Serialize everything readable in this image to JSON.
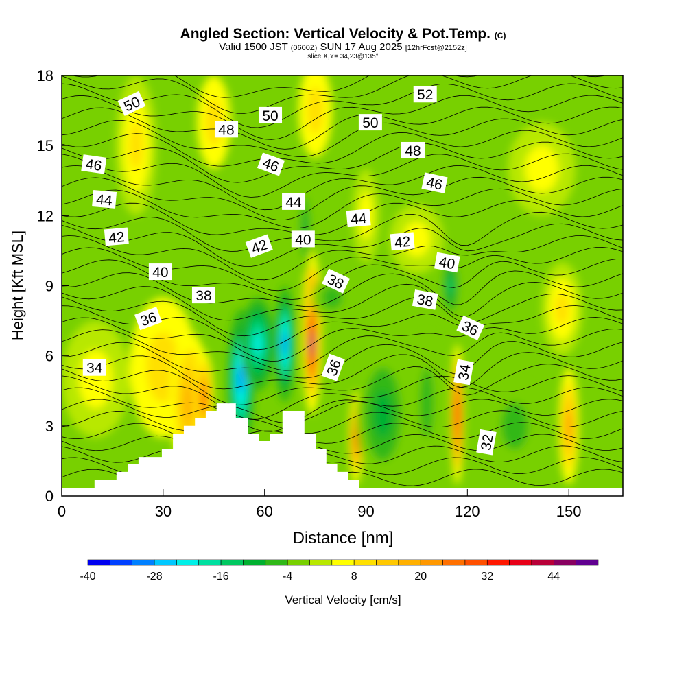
{
  "chart_data": {
    "type": "heatmap",
    "title": "Angled Section: Vertical Velocity & Pot.Temp.",
    "title_mark": "(C)",
    "subtitle_main": "Valid 1500 JST",
    "subtitle_z": "(0600Z)",
    "subtitle_date": "SUN 17 Aug 2025",
    "subtitle_fcst": "[12hrFcst@2152z]",
    "slice": "slice X,Y= 34,23@135°",
    "xlabel": "Distance [nm]",
    "ylabel": "Height [Kft MSL]",
    "xlim": [
      0,
      166
    ],
    "ylim": [
      0,
      18
    ],
    "xticks": [
      "0",
      "30",
      "60",
      "90",
      "120",
      "150"
    ],
    "yticks": [
      "0",
      "3",
      "6",
      "9",
      "12",
      "15",
      "18"
    ],
    "colorbar": {
      "label": "Vertical Velocity [cm/s]",
      "range": [
        -40,
        52
      ],
      "step": 4,
      "tick_labels": [
        "-40",
        "-28",
        "-16",
        "-4",
        "8",
        "20",
        "32",
        "44"
      ],
      "colors": [
        "#0000f0",
        "#0040ff",
        "#0080ff",
        "#00c8ff",
        "#00f0e8",
        "#00e0a0",
        "#00c860",
        "#00b030",
        "#30b818",
        "#78d000",
        "#b8e800",
        "#ffff00",
        "#ffe000",
        "#ffc800",
        "#ffb000",
        "#ff9800",
        "#ff7000",
        "#ff5000",
        "#ff1800",
        "#e80018",
        "#b80038",
        "#880060",
        "#600090"
      ]
    },
    "background_value": 0,
    "cells": [
      {
        "x": 22,
        "y": 15,
        "rx": 6,
        "ry": 3,
        "v": 10
      },
      {
        "x": 45,
        "y": 16,
        "rx": 5,
        "ry": 2,
        "v": 8
      },
      {
        "x": 75,
        "y": 16.5,
        "rx": 5,
        "ry": 2,
        "v": 8
      },
      {
        "x": 142,
        "y": 14,
        "rx": 10,
        "ry": 2,
        "v": 6
      },
      {
        "x": 105,
        "y": 11,
        "rx": 8,
        "ry": 1.5,
        "v": 6
      },
      {
        "x": 90,
        "y": 12,
        "rx": 4,
        "ry": 2,
        "v": 6
      },
      {
        "x": 10,
        "y": 5,
        "rx": 10,
        "ry": 2.5,
        "v": 6
      },
      {
        "x": 30,
        "y": 5.5,
        "rx": 10,
        "ry": 3,
        "v": 8
      },
      {
        "x": 38,
        "y": 4,
        "rx": 6,
        "ry": 3,
        "v": 18
      },
      {
        "x": 42,
        "y": 4.2,
        "rx": 3,
        "ry": 2,
        "v": 26
      },
      {
        "x": 53,
        "y": 5,
        "rx": 4,
        "ry": 3,
        "v": -30
      },
      {
        "x": 58,
        "y": 6.5,
        "rx": 5,
        "ry": 2,
        "v": -22
      },
      {
        "x": 66,
        "y": 6.5,
        "rx": 3,
        "ry": 2.5,
        "v": -30
      },
      {
        "x": 74,
        "y": 7,
        "rx": 3,
        "ry": 3.5,
        "v": 30
      },
      {
        "x": 74,
        "y": 6.5,
        "rx": 1.8,
        "ry": 2.5,
        "v": 48
      },
      {
        "x": 87,
        "y": 2.5,
        "rx": 2,
        "ry": 2,
        "v": 28
      },
      {
        "x": 95,
        "y": 3.5,
        "rx": 8,
        "ry": 3,
        "v": -12
      },
      {
        "x": 108,
        "y": 4,
        "rx": 4,
        "ry": 3,
        "v": -8
      },
      {
        "x": 117,
        "y": 3.5,
        "rx": 2,
        "ry": 3,
        "v": 34
      },
      {
        "x": 134,
        "y": 3,
        "rx": 8,
        "ry": 2,
        "v": -8
      },
      {
        "x": 150,
        "y": 3,
        "rx": 3,
        "ry": 2.5,
        "v": 20
      },
      {
        "x": 148,
        "y": 8,
        "rx": 6,
        "ry": 2,
        "v": 10
      },
      {
        "x": 115,
        "y": 9,
        "rx": 3,
        "ry": 1.5,
        "v": -16
      },
      {
        "x": 72,
        "y": 11.5,
        "rx": 2,
        "ry": 2,
        "v": -12
      },
      {
        "x": 80,
        "y": 8.5,
        "rx": 6,
        "ry": 1,
        "v": -8
      }
    ],
    "terrain": [
      [
        0,
        0.35
      ],
      [
        9.7,
        0.35
      ],
      [
        9.7,
        0.68
      ],
      [
        16.2,
        0.68
      ],
      [
        16.2,
        1.03
      ],
      [
        19.5,
        1.03
      ],
      [
        19.5,
        1.35
      ],
      [
        22.7,
        1.35
      ],
      [
        22.7,
        1.67
      ],
      [
        29.6,
        1.67
      ],
      [
        29.6,
        2.0
      ],
      [
        32.9,
        2.0
      ],
      [
        32.9,
        2.67
      ],
      [
        36.1,
        2.67
      ],
      [
        36.1,
        3.0
      ],
      [
        39.4,
        3.0
      ],
      [
        39.4,
        3.32
      ],
      [
        42.6,
        3.32
      ],
      [
        42.6,
        3.64
      ],
      [
        45.8,
        3.64
      ],
      [
        45.8,
        3.96
      ],
      [
        51.5,
        3.96
      ],
      [
        51.5,
        3.32
      ],
      [
        55.2,
        3.32
      ],
      [
        55.2,
        2.67
      ],
      [
        58.4,
        2.67
      ],
      [
        58.4,
        2.35
      ],
      [
        61.7,
        2.35
      ],
      [
        61.7,
        2.67
      ],
      [
        65.3,
        2.67
      ],
      [
        65.3,
        3.64
      ],
      [
        71.8,
        3.64
      ],
      [
        71.8,
        2.67
      ],
      [
        75.1,
        2.67
      ],
      [
        75.1,
        2.0
      ],
      [
        78.3,
        2.0
      ],
      [
        78.3,
        1.35
      ],
      [
        81.5,
        1.35
      ],
      [
        81.5,
        1.03
      ],
      [
        84.8,
        1.03
      ],
      [
        84.8,
        0.68
      ],
      [
        88.0,
        0.68
      ],
      [
        88.0,
        0.35
      ],
      [
        166,
        0.35
      ],
      [
        166,
        0
      ],
      [
        0,
        0
      ]
    ],
    "contour_labels": [
      {
        "t": "50",
        "x": 20.7,
        "y": 16.8
      },
      {
        "t": "48",
        "x": 48.7,
        "y": 15.7
      },
      {
        "t": "50",
        "x": 61.7,
        "y": 16.3
      },
      {
        "t": "50",
        "x": 91.3,
        "y": 16.0
      },
      {
        "t": "52",
        "x": 107.5,
        "y": 17.2
      },
      {
        "t": "46",
        "x": 9.5,
        "y": 14.2
      },
      {
        "t": "46",
        "x": 61.9,
        "y": 14.2
      },
      {
        "t": "48",
        "x": 103.9,
        "y": 14.8
      },
      {
        "t": "46",
        "x": 110.3,
        "y": 13.4
      },
      {
        "t": "44",
        "x": 12.6,
        "y": 12.7
      },
      {
        "t": "44",
        "x": 68.6,
        "y": 12.6
      },
      {
        "t": "44",
        "x": 87.8,
        "y": 11.9
      },
      {
        "t": "42",
        "x": 16.2,
        "y": 11.1
      },
      {
        "t": "42",
        "x": 58.4,
        "y": 10.7
      },
      {
        "t": "42",
        "x": 100.8,
        "y": 10.9
      },
      {
        "t": "40",
        "x": 29.2,
        "y": 9.6
      },
      {
        "t": "40",
        "x": 71.4,
        "y": 11.0
      },
      {
        "t": "40",
        "x": 114.0,
        "y": 10.0
      },
      {
        "t": "38",
        "x": 42.0,
        "y": 8.6
      },
      {
        "t": "38",
        "x": 81.1,
        "y": 9.2
      },
      {
        "t": "38",
        "x": 107.5,
        "y": 8.4
      },
      {
        "t": "36",
        "x": 25.6,
        "y": 7.6
      },
      {
        "t": "36",
        "x": 120.9,
        "y": 7.2
      },
      {
        "t": "36",
        "x": 80.3,
        "y": 5.5
      },
      {
        "t": "34",
        "x": 9.7,
        "y": 5.5
      },
      {
        "t": "34",
        "x": 118.9,
        "y": 5.3
      },
      {
        "t": "32",
        "x": 125.6,
        "y": 2.3
      }
    ]
  }
}
